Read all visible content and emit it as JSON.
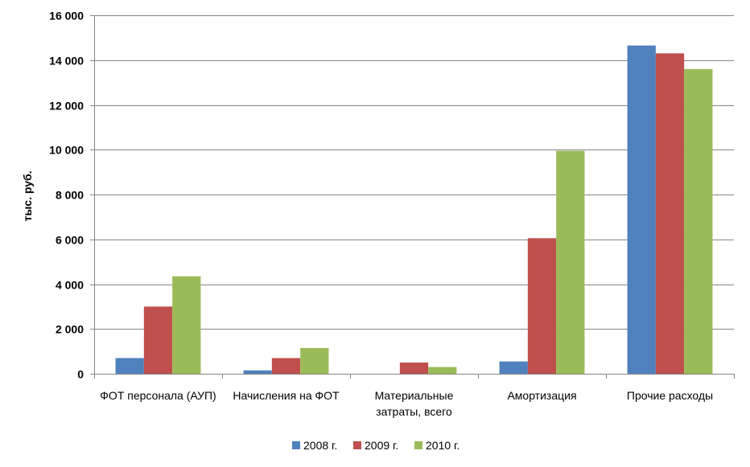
{
  "chart_data": {
    "type": "bar",
    "title": "",
    "xlabel": "",
    "ylabel": "тыс. руб.",
    "ylim": [
      0,
      16000
    ],
    "yticks": [
      0,
      2000,
      4000,
      6000,
      8000,
      10000,
      12000,
      14000,
      16000
    ],
    "ytick_labels": [
      "0",
      "2 000",
      "4 000",
      "6 000",
      "8 000",
      "10 000",
      "12 000",
      "14 000",
      "16 000"
    ],
    "categories": [
      [
        "ФОТ персонала (АУП)"
      ],
      [
        "Начисления на ФОТ"
      ],
      [
        "Материальные",
        "затраты, всего"
      ],
      [
        "Амортизация"
      ],
      [
        "Прочие расходы"
      ]
    ],
    "series": [
      {
        "name": "2008 г.",
        "color": "#4F81BD",
        "values": [
          700,
          150,
          0,
          550,
          14650
        ]
      },
      {
        "name": "2009 г.",
        "color": "#C0504D",
        "values": [
          3000,
          700,
          500,
          6050,
          14300
        ]
      },
      {
        "name": "2010 г.",
        "color": "#9BBB59",
        "values": [
          4350,
          1150,
          300,
          9950,
          13600
        ]
      }
    ],
    "grid": true,
    "legend": "bottom"
  }
}
